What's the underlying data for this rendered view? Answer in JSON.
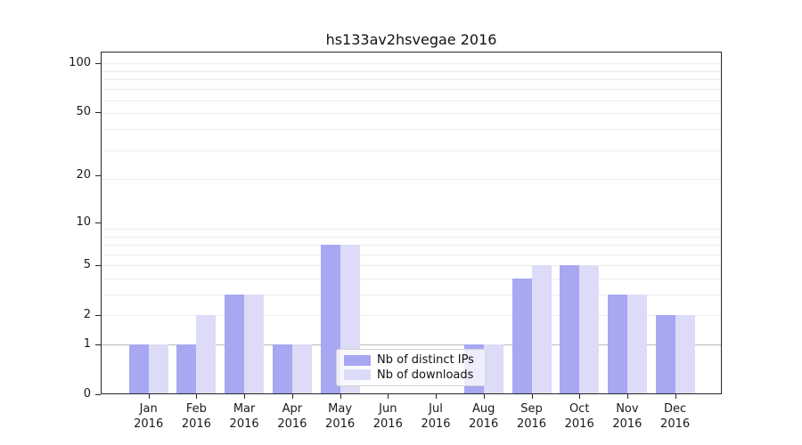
{
  "chart_data": {
    "type": "bar",
    "title": "hs133av2hsvegae 2016",
    "categories": [
      "Jan",
      "Feb",
      "Mar",
      "Apr",
      "May",
      "Jun",
      "Jul",
      "Aug",
      "Sep",
      "Oct",
      "Nov",
      "Dec"
    ],
    "year": "2016",
    "series": [
      {
        "name": "Nb of distinct IPs",
        "color": "#a7a7f2",
        "values": [
          1,
          1,
          3,
          1,
          7,
          0,
          0,
          1,
          4,
          5,
          3,
          2
        ]
      },
      {
        "name": "Nb of downloads",
        "color": "#dcdcf8",
        "values": [
          1,
          2,
          3,
          1,
          7,
          0,
          0,
          1,
          5,
          5,
          3,
          2
        ]
      }
    ],
    "y_scale": "log10(1+y)",
    "y_ticks": [
      100,
      50,
      20,
      10,
      5,
      2,
      1,
      0
    ],
    "ylim": [
      0,
      117
    ],
    "grid": "horizontal",
    "legend_position": "lower-center"
  },
  "colors": {
    "distinct_ips": "#a7a7f2",
    "downloads": "#dcdcf8",
    "grid_minor": "#ededed",
    "grid_level_one": "#b9b9b9",
    "axis": "#262626",
    "background": "#ffffff"
  }
}
